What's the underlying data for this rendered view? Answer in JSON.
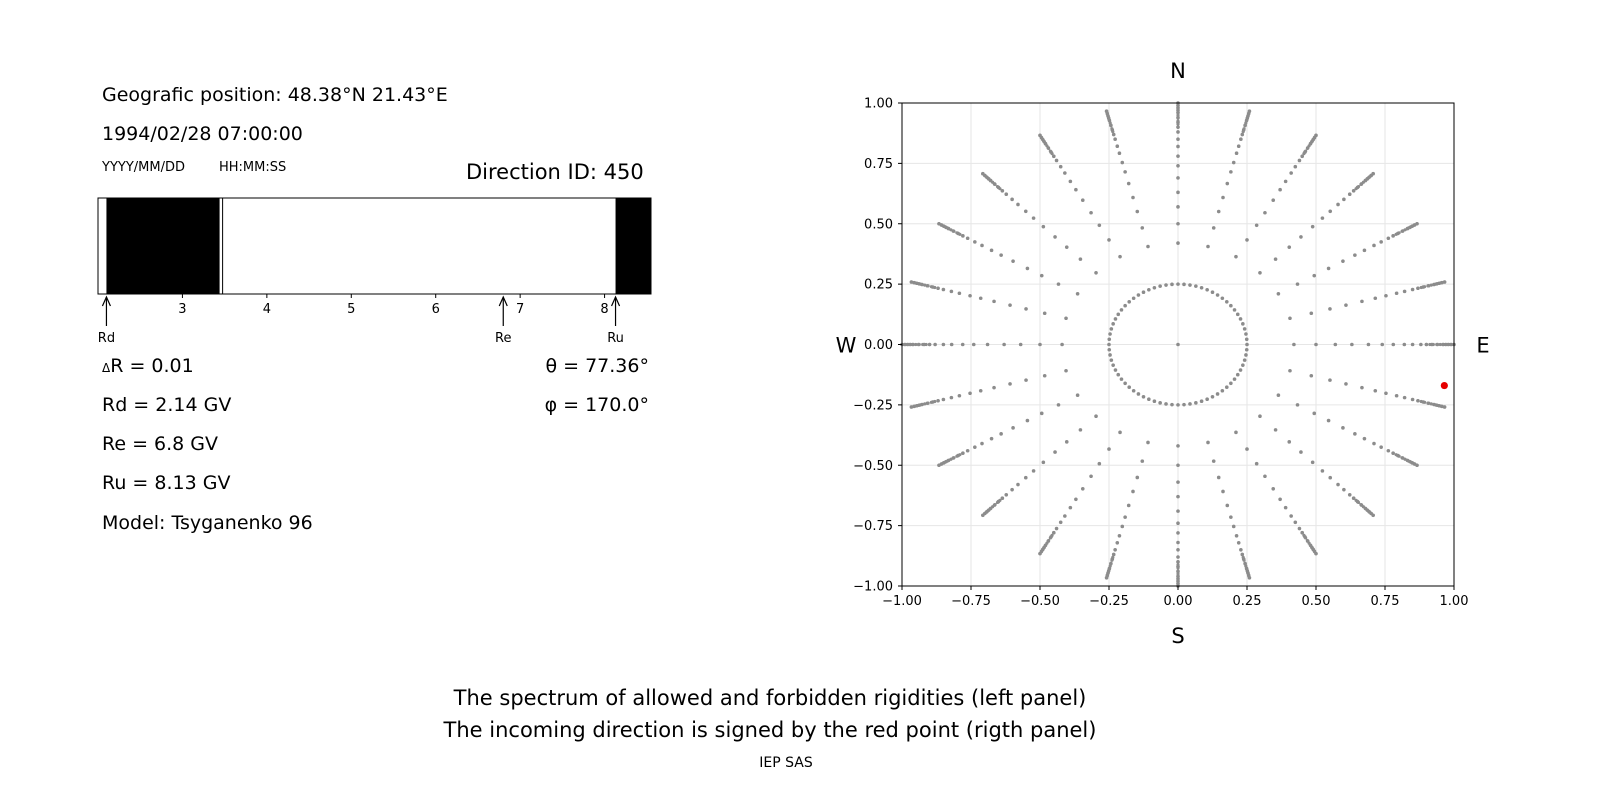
{
  "info": {
    "position": "Geografic position: 48.38°N 21.43°E",
    "datetime": "1994/02/28 07:00:00",
    "date_format": "YYYY/MM/DD",
    "time_format": "HH:MM:SS",
    "direction_id": "Direction ID: 450",
    "delta_r": "R = 0.01",
    "delta_symbol": "Δ",
    "theta": "θ = 77.36°",
    "phi": "φ = 170.0°",
    "rd": "Rd = 2.14 GV",
    "re": "Re = 6.8 GV",
    "ru": "Ru = 8.13 GV",
    "model": "Model: Tsyganenko 96"
  },
  "caption": {
    "line1": "The spectrum of allowed and forbidden rigidities (left panel)",
    "line2": "The incoming direction is signed by the red point (rigth panel)",
    "credit": "IEP SAS"
  },
  "chart_data": [
    {
      "type": "bar",
      "description_none": "",
      "xlim": [
        2.0,
        8.55
      ],
      "xticks": [
        3,
        4,
        5,
        6,
        7,
        8
      ],
      "xtick_labels": [
        "3",
        "4",
        "5",
        "6",
        "7",
        "8"
      ],
      "forbidden_intervals": [
        [
          2.1,
          3.44
        ],
        [
          3.47,
          3.48
        ],
        [
          8.13,
          8.55
        ]
      ],
      "allowed_color": "#ffffff",
      "forbidden_color": "#000000",
      "markers": [
        {
          "label": "Rd",
          "value": 2.1
        },
        {
          "label": "Re",
          "value": 6.8
        },
        {
          "label": "Ru",
          "value": 8.13
        }
      ]
    },
    {
      "type": "scatter",
      "xlim": [
        -1.0,
        1.0
      ],
      "ylim": [
        -1.0,
        1.0
      ],
      "xticks": [
        -1.0,
        -0.75,
        -0.5,
        -0.25,
        0.0,
        0.25,
        0.5,
        0.75,
        1.0
      ],
      "xtick_labels": [
        "−1.00",
        "−0.75",
        "−0.50",
        "−0.25",
        "0.00",
        "0.25",
        "0.50",
        "0.75",
        "1.00"
      ],
      "yticks": [
        1.0,
        0.75,
        0.5,
        0.25,
        0.0,
        -0.25,
        -0.5,
        -0.75,
        -1.0
      ],
      "ytick_labels": [
        "1.00",
        "0.75",
        "0.50",
        "0.25",
        "0.00",
        "−0.25",
        "−0.50",
        "−0.75",
        "−1.00"
      ],
      "grid": true,
      "compass": {
        "top": "N",
        "bottom": "S",
        "left": "W",
        "right": "E"
      },
      "directions": {
        "azimuth_step_deg": 15,
        "rings": [
          0,
          0.25,
          0.42,
          0.5,
          0.57,
          0.63,
          0.69,
          0.74,
          0.78,
          0.82,
          0.85,
          0.88,
          0.9,
          0.92,
          0.94,
          0.96,
          0.97,
          0.98,
          0.99,
          1.0
        ],
        "dot_color": "#8c8c8c"
      },
      "highlight": {
        "x": 0.965,
        "y": -0.17,
        "color": "#e60000"
      }
    }
  ]
}
